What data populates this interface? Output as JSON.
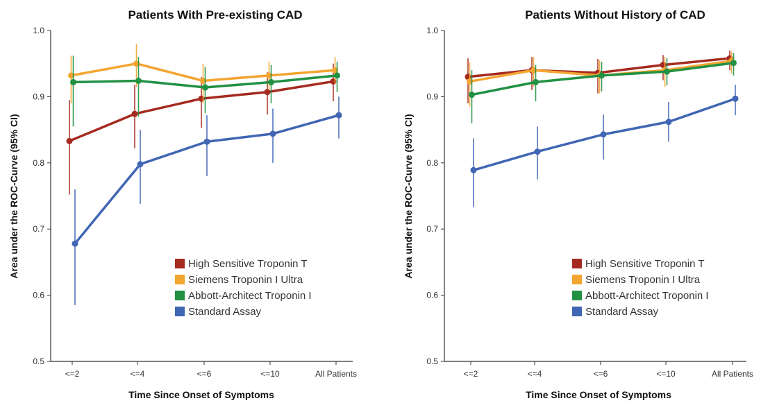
{
  "chart_data": [
    {
      "type": "line",
      "title": "Patients With Pre-existing CAD",
      "xlabel": "Time Since Onset of Symptoms",
      "ylabel": "Area under the ROC-Curve (95% CI)",
      "ylim": [
        0.5,
        1.0
      ],
      "yticks": [
        "0.5",
        "0.6",
        "0.7",
        "0.8",
        "0.9",
        "1.0"
      ],
      "categories": [
        "<=2",
        "<=4",
        "<=6",
        "<=10",
        "All Patients"
      ],
      "legend_position": "bottom-right",
      "series": [
        {
          "name": "High Sensitive Troponin T",
          "color": "#a52a1f",
          "values": [
            0.833,
            0.874,
            0.897,
            0.907,
            0.923
          ],
          "ci_low": [
            0.752,
            0.822,
            0.853,
            0.873,
            0.893
          ],
          "ci_high": [
            0.895,
            0.918,
            0.93,
            0.937,
            0.95
          ]
        },
        {
          "name": "Siemens Troponin I Ultra",
          "color": "#f3a531",
          "values": [
            0.932,
            0.95,
            0.924,
            0.932,
            0.94
          ],
          "ci_low": [
            0.89,
            0.915,
            0.89,
            0.91,
            0.92
          ],
          "ci_high": [
            0.962,
            0.98,
            0.95,
            0.953,
            0.96
          ]
        },
        {
          "name": "Abbott-Architect Troponin I",
          "color": "#219144",
          "values": [
            0.922,
            0.924,
            0.914,
            0.922,
            0.932
          ],
          "ci_low": [
            0.855,
            0.87,
            0.875,
            0.89,
            0.907
          ],
          "ci_high": [
            0.962,
            0.96,
            0.945,
            0.948,
            0.953
          ]
        },
        {
          "name": "Standard Assay",
          "color": "#4066b4",
          "values": [
            0.678,
            0.798,
            0.832,
            0.844,
            0.872
          ],
          "ci_low": [
            0.585,
            0.738,
            0.78,
            0.8,
            0.837
          ],
          "ci_high": [
            0.76,
            0.85,
            0.872,
            0.882,
            0.9
          ]
        }
      ]
    },
    {
      "type": "line",
      "title": "Patients Without History of CAD",
      "xlabel": "Time Since Onset of Symptoms",
      "ylabel": "Area under the ROC-Curve (95% CI)",
      "ylim": [
        0.5,
        1.0
      ],
      "yticks": [
        "0.5",
        "0.6",
        "0.7",
        "0.8",
        "0.9",
        "1.0"
      ],
      "categories": [
        "<=2",
        "<=4",
        "<=6",
        "<=10",
        "All Patients"
      ],
      "legend_position": "bottom-right",
      "series": [
        {
          "name": "High Sensitive Troponin T",
          "color": "#a52a1f",
          "values": [
            0.93,
            0.94,
            0.936,
            0.948,
            0.958
          ],
          "ci_low": [
            0.89,
            0.91,
            0.905,
            0.925,
            0.94
          ],
          "ci_high": [
            0.958,
            0.96,
            0.957,
            0.963,
            0.97
          ]
        },
        {
          "name": "Siemens Troponin I Ultra",
          "color": "#f3a531",
          "values": [
            0.923,
            0.94,
            0.932,
            0.94,
            0.954
          ],
          "ci_low": [
            0.885,
            0.915,
            0.905,
            0.915,
            0.935
          ],
          "ci_high": [
            0.952,
            0.96,
            0.955,
            0.96,
            0.968
          ]
        },
        {
          "name": "Abbott-Architect Troponin I",
          "color": "#219144",
          "values": [
            0.903,
            0.922,
            0.932,
            0.938,
            0.951
          ],
          "ci_low": [
            0.86,
            0.893,
            0.908,
            0.917,
            0.932
          ],
          "ci_high": [
            0.94,
            0.948,
            0.953,
            0.958,
            0.966
          ]
        },
        {
          "name": "Standard Assay",
          "color": "#4066b4",
          "values": [
            0.789,
            0.817,
            0.843,
            0.862,
            0.897
          ],
          "ci_low": [
            0.733,
            0.775,
            0.805,
            0.832,
            0.872
          ],
          "ci_high": [
            0.837,
            0.855,
            0.873,
            0.892,
            0.918
          ]
        }
      ]
    }
  ]
}
